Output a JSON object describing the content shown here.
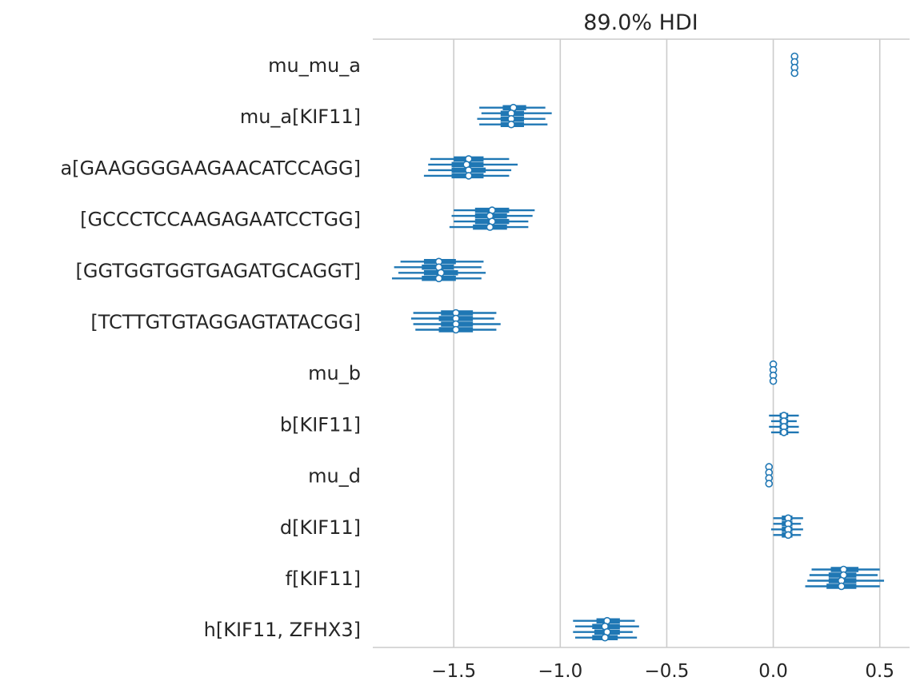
{
  "chart_data": {
    "type": "forest",
    "title": "89.0% HDI",
    "xlabel": "",
    "ylabel": "",
    "xlim": [
      -1.88,
      0.64
    ],
    "xticks": [
      {
        "value": -1.5,
        "label": "−1.5"
      },
      {
        "value": -1.0,
        "label": "−1.0"
      },
      {
        "value": -0.5,
        "label": "−0.5"
      },
      {
        "value": 0.0,
        "label": "0.0"
      },
      {
        "value": 0.5,
        "label": "0.5"
      }
    ],
    "grid": "vertical",
    "line_color": "#1f77b4",
    "rows": [
      {
        "label": "mu_mu_a",
        "chains": [
          {
            "mean": 0.1,
            "q25": 0.1,
            "q75": 0.1,
            "hdi": [
              0.1,
              0.1
            ]
          },
          {
            "mean": 0.1,
            "q25": 0.1,
            "q75": 0.1,
            "hdi": [
              0.1,
              0.1
            ]
          },
          {
            "mean": 0.1,
            "q25": 0.1,
            "q75": 0.1,
            "hdi": [
              0.1,
              0.1
            ]
          },
          {
            "mean": 0.1,
            "q25": 0.1,
            "q75": 0.1,
            "hdi": [
              0.1,
              0.1
            ]
          }
        ]
      },
      {
        "label": "mu_a[KIF11]",
        "chains": [
          {
            "mean": -1.22,
            "q25": -1.27,
            "q75": -1.16,
            "hdi": [
              -1.38,
              -1.07
            ]
          },
          {
            "mean": -1.23,
            "q25": -1.28,
            "q75": -1.17,
            "hdi": [
              -1.37,
              -1.04
            ]
          },
          {
            "mean": -1.23,
            "q25": -1.28,
            "q75": -1.17,
            "hdi": [
              -1.39,
              -1.07
            ]
          },
          {
            "mean": -1.23,
            "q25": -1.28,
            "q75": -1.17,
            "hdi": [
              -1.38,
              -1.06
            ]
          }
        ]
      },
      {
        "label": "a[GAAGGGGAAGAACATCCAGG]",
        "chains": [
          {
            "mean": -1.43,
            "q25": -1.5,
            "q75": -1.36,
            "hdi": [
              -1.61,
              -1.24
            ]
          },
          {
            "mean": -1.44,
            "q25": -1.51,
            "q75": -1.36,
            "hdi": [
              -1.62,
              -1.2
            ]
          },
          {
            "mean": -1.43,
            "q25": -1.51,
            "q75": -1.35,
            "hdi": [
              -1.62,
              -1.23
            ]
          },
          {
            "mean": -1.43,
            "q25": -1.51,
            "q75": -1.36,
            "hdi": [
              -1.64,
              -1.24
            ]
          }
        ]
      },
      {
        "label": "[GCCCTCCAAGAGAATCCTGG]",
        "chains": [
          {
            "mean": -1.32,
            "q25": -1.4,
            "q75": -1.24,
            "hdi": [
              -1.5,
              -1.12
            ]
          },
          {
            "mean": -1.33,
            "q25": -1.4,
            "q75": -1.25,
            "hdi": [
              -1.51,
              -1.13
            ]
          },
          {
            "mean": -1.32,
            "q25": -1.4,
            "q75": -1.24,
            "hdi": [
              -1.5,
              -1.15
            ]
          },
          {
            "mean": -1.33,
            "q25": -1.41,
            "q75": -1.25,
            "hdi": [
              -1.52,
              -1.15
            ]
          }
        ]
      },
      {
        "label": "[GGTGGTGGTGAGATGCAGGT]",
        "chains": [
          {
            "mean": -1.57,
            "q25": -1.64,
            "q75": -1.49,
            "hdi": [
              -1.75,
              -1.36
            ]
          },
          {
            "mean": -1.57,
            "q25": -1.65,
            "q75": -1.5,
            "hdi": [
              -1.78,
              -1.37
            ]
          },
          {
            "mean": -1.56,
            "q25": -1.64,
            "q75": -1.48,
            "hdi": [
              -1.76,
              -1.35
            ]
          },
          {
            "mean": -1.57,
            "q25": -1.65,
            "q75": -1.49,
            "hdi": [
              -1.79,
              -1.37
            ]
          }
        ]
      },
      {
        "label": "[TCTTGTGTAGGAGTATACGG]",
        "chains": [
          {
            "mean": -1.49,
            "q25": -1.56,
            "q75": -1.41,
            "hdi": [
              -1.69,
              -1.3
            ]
          },
          {
            "mean": -1.49,
            "q25": -1.57,
            "q75": -1.41,
            "hdi": [
              -1.7,
              -1.31
            ]
          },
          {
            "mean": -1.49,
            "q25": -1.56,
            "q75": -1.41,
            "hdi": [
              -1.69,
              -1.28
            ]
          },
          {
            "mean": -1.49,
            "q25": -1.57,
            "q75": -1.41,
            "hdi": [
              -1.68,
              -1.3
            ]
          }
        ]
      },
      {
        "label": "mu_b",
        "chains": [
          {
            "mean": 0.0,
            "q25": 0.0,
            "q75": 0.0,
            "hdi": [
              0.0,
              0.0
            ]
          },
          {
            "mean": 0.0,
            "q25": 0.0,
            "q75": 0.0,
            "hdi": [
              0.0,
              0.0
            ]
          },
          {
            "mean": 0.0,
            "q25": 0.0,
            "q75": 0.0,
            "hdi": [
              0.0,
              0.0
            ]
          },
          {
            "mean": 0.0,
            "q25": 0.0,
            "q75": 0.0,
            "hdi": [
              0.0,
              0.0
            ]
          }
        ]
      },
      {
        "label": "b[KIF11]",
        "chains": [
          {
            "mean": 0.05,
            "q25": 0.03,
            "q75": 0.07,
            "hdi": [
              -0.02,
              0.12
            ]
          },
          {
            "mean": 0.05,
            "q25": 0.03,
            "q75": 0.07,
            "hdi": [
              -0.01,
              0.11
            ]
          },
          {
            "mean": 0.05,
            "q25": 0.03,
            "q75": 0.07,
            "hdi": [
              -0.02,
              0.12
            ]
          },
          {
            "mean": 0.05,
            "q25": 0.03,
            "q75": 0.07,
            "hdi": [
              -0.01,
              0.12
            ]
          }
        ]
      },
      {
        "label": "mu_d",
        "chains": [
          {
            "mean": -0.02,
            "q25": -0.02,
            "q75": -0.02,
            "hdi": [
              -0.02,
              -0.02
            ]
          },
          {
            "mean": -0.02,
            "q25": -0.02,
            "q75": -0.02,
            "hdi": [
              -0.02,
              -0.02
            ]
          },
          {
            "mean": -0.02,
            "q25": -0.02,
            "q75": -0.02,
            "hdi": [
              -0.02,
              -0.02
            ]
          },
          {
            "mean": -0.02,
            "q25": -0.02,
            "q75": -0.02,
            "hdi": [
              -0.02,
              -0.02
            ]
          }
        ]
      },
      {
        "label": "d[KIF11]",
        "chains": [
          {
            "mean": 0.07,
            "q25": 0.04,
            "q75": 0.09,
            "hdi": [
              0.0,
              0.14
            ]
          },
          {
            "mean": 0.07,
            "q25": 0.04,
            "q75": 0.09,
            "hdi": [
              0.0,
              0.13
            ]
          },
          {
            "mean": 0.07,
            "q25": 0.04,
            "q75": 0.09,
            "hdi": [
              -0.01,
              0.14
            ]
          },
          {
            "mean": 0.07,
            "q25": 0.04,
            "q75": 0.09,
            "hdi": [
              0.0,
              0.13
            ]
          }
        ]
      },
      {
        "label": "f[KIF11]",
        "chains": [
          {
            "mean": 0.33,
            "q25": 0.27,
            "q75": 0.4,
            "hdi": [
              0.18,
              0.5
            ]
          },
          {
            "mean": 0.33,
            "q25": 0.26,
            "q75": 0.39,
            "hdi": [
              0.17,
              0.49
            ]
          },
          {
            "mean": 0.32,
            "q25": 0.26,
            "q75": 0.39,
            "hdi": [
              0.16,
              0.52
            ]
          },
          {
            "mean": 0.32,
            "q25": 0.25,
            "q75": 0.39,
            "hdi": [
              0.15,
              0.5
            ]
          }
        ]
      },
      {
        "label": "h[KIF11, ZFHX3]",
        "chains": [
          {
            "mean": -0.78,
            "q25": -0.83,
            "q75": -0.72,
            "hdi": [
              -0.94,
              -0.65
            ]
          },
          {
            "mean": -0.79,
            "q25": -0.85,
            "q75": -0.72,
            "hdi": [
              -0.93,
              -0.63
            ]
          },
          {
            "mean": -0.78,
            "q25": -0.84,
            "q75": -0.72,
            "hdi": [
              -0.94,
              -0.66
            ]
          },
          {
            "mean": -0.79,
            "q25": -0.85,
            "q75": -0.73,
            "hdi": [
              -0.93,
              -0.64
            ]
          }
        ]
      }
    ]
  }
}
